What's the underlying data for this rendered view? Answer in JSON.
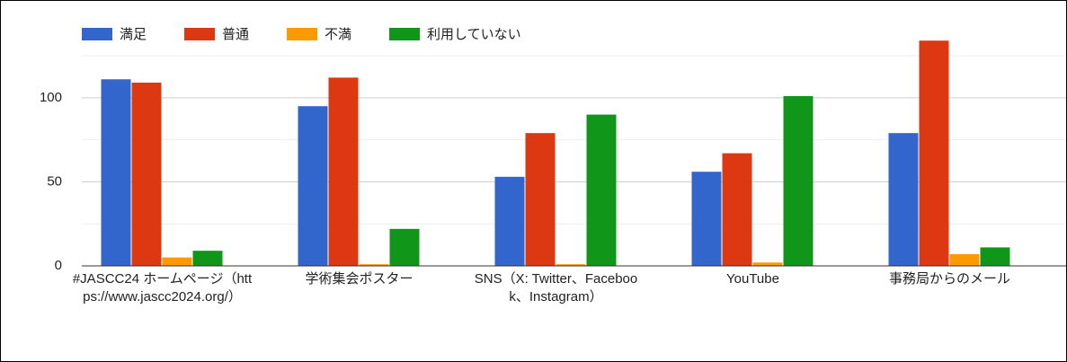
{
  "chart_data": {
    "type": "bar",
    "categories": [
      "#JASCC24 ホームページ（https://www.jascc2024.org/）",
      "学術集会ポスター",
      "SNS（X: Twitter、Facebook、Instagram）",
      "YouTube",
      "事務局からのメール"
    ],
    "series": [
      {
        "name": "満足",
        "color": "#3366cc",
        "values": [
          111,
          95,
          53,
          56,
          79
        ]
      },
      {
        "name": "普通",
        "color": "#dc3912",
        "values": [
          109,
          112,
          79,
          67,
          134
        ]
      },
      {
        "name": "不満",
        "color": "#ff9900",
        "values": [
          5,
          1,
          1,
          2,
          7
        ]
      },
      {
        "name": "利用していない",
        "color": "#109618",
        "values": [
          9,
          22,
          90,
          101,
          11
        ]
      }
    ],
    "ylim": [
      0,
      140
    ],
    "yticks": [
      0,
      50,
      100
    ],
    "minor_yticks": [
      25,
      75,
      125
    ],
    "grid": true,
    "legend": "top"
  }
}
